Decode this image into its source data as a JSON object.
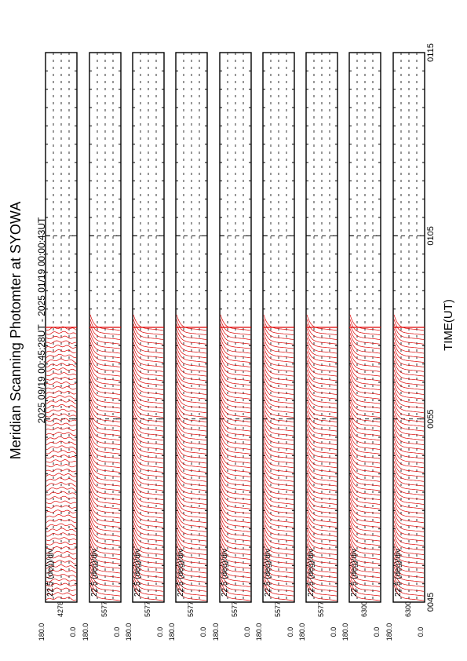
{
  "chart_data": {
    "type": "line",
    "orientation": "rotated-90",
    "title": "Meridian Scanning Photomter at SYOWA",
    "subtitle": "2025 09/19 00:45:28UT - 2025 01/19 00:00:43UT",
    "xlabel": "TIME(UT)",
    "x_ticks": [
      "0045",
      "0055",
      "0105",
      "0115"
    ],
    "x_range": [
      "00:45",
      "01:15"
    ],
    "data_end_time": "01:00",
    "grid": true,
    "line_color": "#dd0000",
    "scan_count": 60,
    "panels": [
      {
        "channel": "4278",
        "scale_label": "22.5 (deg)/div",
        "y_top": "180.0",
        "y_bottom": "0.0",
        "ylim": [
          0,
          180
        ]
      },
      {
        "channel": "5577",
        "scale_label": "22.5 (deg)/div",
        "y_top": "180.0",
        "y_bottom": "0.0",
        "ylim": [
          0,
          180
        ]
      },
      {
        "channel": "5577",
        "scale_label": "22.5 (deg)/div",
        "y_top": "180.0",
        "y_bottom": "0.0",
        "ylim": [
          0,
          180
        ]
      },
      {
        "channel": "5577",
        "scale_label": "22.5 (deg)/div",
        "y_top": "180.0",
        "y_bottom": "0.0",
        "ylim": [
          0,
          180
        ]
      },
      {
        "channel": "5577",
        "scale_label": "22.5 (deg)/div",
        "y_top": "180.0",
        "y_bottom": "0.0",
        "ylim": [
          0,
          180
        ]
      },
      {
        "channel": "5577",
        "scale_label": "22.5 (deg)/div",
        "y_top": "180.0",
        "y_bottom": "0.0",
        "ylim": [
          0,
          180
        ]
      },
      {
        "channel": "5577",
        "scale_label": "22.5 (deg)/div",
        "y_top": "180.0",
        "y_bottom": "0.0",
        "ylim": [
          0,
          180
        ]
      },
      {
        "channel": "6300",
        "scale_label": "22.5 (deg)/div",
        "y_top": "180.0",
        "y_bottom": "0.0",
        "ylim": [
          0,
          180
        ]
      },
      {
        "channel": "6300",
        "scale_label": "22.5 (deg)/div",
        "y_top": "180.0",
        "y_bottom": "0.0",
        "ylim": [
          0,
          180
        ]
      }
    ]
  }
}
